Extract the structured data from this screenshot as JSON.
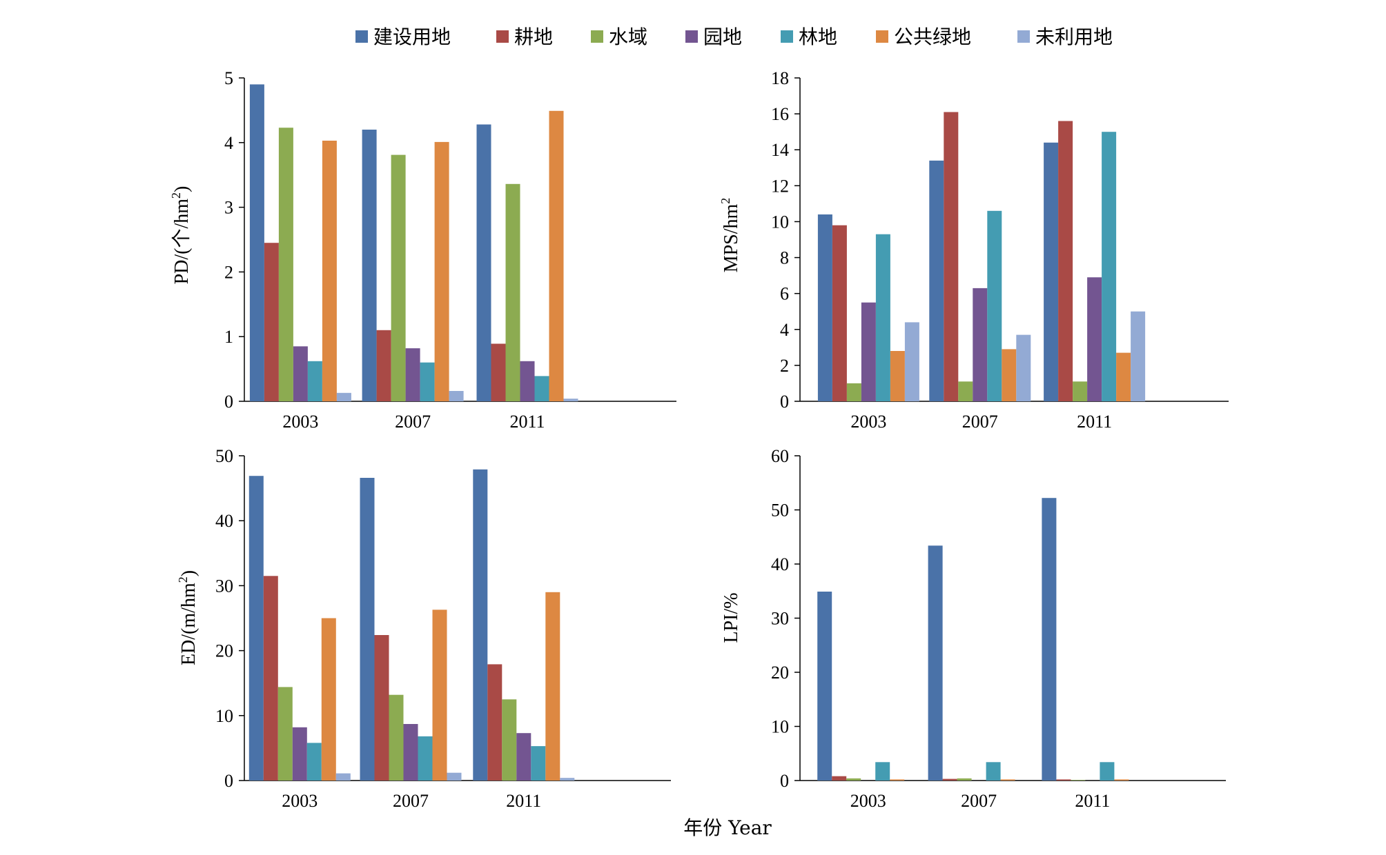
{
  "legend": [
    {
      "label": "建设用地",
      "color": "#4a72a8"
    },
    {
      "label": "耕地",
      "color": "#a94a46"
    },
    {
      "label": "水域",
      "color": "#8cab51"
    },
    {
      "label": "园地",
      "color": "#735591"
    },
    {
      "label": "林地",
      "color": "#449cb2"
    },
    {
      "label": "公共绿地",
      "color": "#dd8842"
    },
    {
      "label": "未利用地",
      "color": "#93aad4"
    }
  ],
  "shared_xlabel": "年份 Year",
  "chart_data": [
    {
      "type": "bar",
      "ylabel": "PD/(个/hm²)",
      "ylabel_parts": [
        "PD/(个/hm",
        "2",
        ")"
      ],
      "categories": [
        "2003",
        "2007",
        "2011"
      ],
      "ylim": [
        0,
        5
      ],
      "yticks": [
        "0",
        "1",
        "2",
        "3",
        "4",
        "5"
      ],
      "series": [
        {
          "name": "建设用地",
          "values": [
            4.9,
            4.2,
            4.28
          ]
        },
        {
          "name": "耕地",
          "values": [
            2.45,
            1.1,
            0.89
          ]
        },
        {
          "name": "水域",
          "values": [
            4.23,
            3.81,
            3.36
          ]
        },
        {
          "name": "园地",
          "values": [
            0.85,
            0.82,
            0.62
          ]
        },
        {
          "name": "林地",
          "values": [
            0.62,
            0.6,
            0.39
          ]
        },
        {
          "name": "公共绿地",
          "values": [
            4.03,
            4.01,
            4.49
          ]
        },
        {
          "name": "未利用地",
          "values": [
            0.13,
            0.16,
            0.04
          ]
        }
      ]
    },
    {
      "type": "bar",
      "ylabel": "MPS/hm²",
      "ylabel_parts": [
        "MPS/hm",
        "2",
        ""
      ],
      "categories": [
        "2003",
        "2007",
        "2011"
      ],
      "ylim": [
        0,
        18
      ],
      "yticks": [
        "0",
        "2",
        "4",
        "6",
        "8",
        "10",
        "12",
        "14",
        "16",
        "18"
      ],
      "series": [
        {
          "name": "建设用地",
          "values": [
            10.4,
            13.4,
            14.4
          ]
        },
        {
          "name": "耕地",
          "values": [
            9.8,
            16.1,
            15.6
          ]
        },
        {
          "name": "水域",
          "values": [
            1.0,
            1.1,
            1.1
          ]
        },
        {
          "name": "园地",
          "values": [
            5.5,
            6.3,
            6.9
          ]
        },
        {
          "name": "林地",
          "values": [
            9.3,
            10.6,
            15.0
          ]
        },
        {
          "name": "公共绿地",
          "values": [
            2.8,
            2.9,
            2.7
          ]
        },
        {
          "name": "未利用地",
          "values": [
            4.4,
            3.7,
            5.0
          ]
        }
      ]
    },
    {
      "type": "bar",
      "ylabel": "ED/(m/hm²)",
      "ylabel_parts": [
        "ED/(m/hm",
        "2",
        ")"
      ],
      "categories": [
        "2003",
        "2007",
        "2011"
      ],
      "ylim": [
        0,
        50
      ],
      "yticks": [
        "0",
        "10",
        "20",
        "30",
        "40",
        "50"
      ],
      "series": [
        {
          "name": "建设用地",
          "values": [
            46.9,
            46.6,
            47.9
          ]
        },
        {
          "name": "耕地",
          "values": [
            31.5,
            22.4,
            17.9
          ]
        },
        {
          "name": "水域",
          "values": [
            14.4,
            13.2,
            12.5
          ]
        },
        {
          "name": "园地",
          "values": [
            8.2,
            8.7,
            7.3
          ]
        },
        {
          "name": "林地",
          "values": [
            5.8,
            6.8,
            5.3
          ]
        },
        {
          "name": "公共绿地",
          "values": [
            25.0,
            26.3,
            29.0
          ]
        },
        {
          "name": "未利用地",
          "values": [
            1.1,
            1.2,
            0.4
          ]
        }
      ]
    },
    {
      "type": "bar",
      "ylabel": "LPI/%",
      "ylabel_parts": [
        "LPI/%",
        "",
        ""
      ],
      "categories": [
        "2003",
        "2007",
        "2011"
      ],
      "ylim": [
        0,
        60
      ],
      "yticks": [
        "0",
        "10",
        "20",
        "30",
        "40",
        "50",
        "60"
      ],
      "series": [
        {
          "name": "建设用地",
          "values": [
            34.9,
            43.4,
            52.2
          ]
        },
        {
          "name": "耕地",
          "values": [
            0.8,
            0.3,
            0.2
          ]
        },
        {
          "name": "水域",
          "values": [
            0.4,
            0.4,
            0.1
          ]
        },
        {
          "name": "园地",
          "values": [
            0.0,
            0.0,
            0.0
          ]
        },
        {
          "name": "林地",
          "values": [
            3.4,
            3.4,
            3.4
          ]
        },
        {
          "name": "公共绿地",
          "values": [
            0.2,
            0.2,
            0.2
          ]
        },
        {
          "name": "未利用地",
          "values": [
            0.0,
            0.0,
            0.0
          ]
        }
      ]
    }
  ]
}
